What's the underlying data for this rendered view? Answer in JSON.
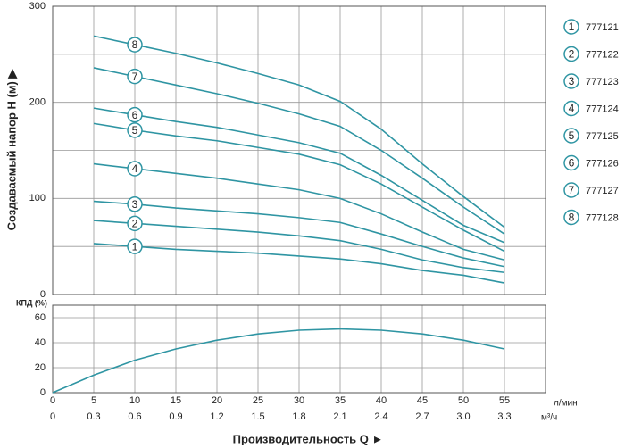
{
  "chart_data": [
    {
      "type": "line",
      "ylabel": "Создаваемый напор H (м) ▶",
      "x": [
        5,
        10,
        15,
        20,
        25,
        30,
        35,
        40,
        45,
        50,
        55
      ],
      "xlim": [
        0,
        60
      ],
      "ylim": [
        0,
        300
      ],
      "yticks": [
        0,
        100,
        200,
        300
      ],
      "yminor": [
        50,
        150,
        250
      ],
      "color": "#2f95a3",
      "series": [
        {
          "name": "777121",
          "marker": "1",
          "values": [
            53,
            50,
            47,
            45,
            43,
            40,
            37,
            32,
            25,
            20,
            12
          ]
        },
        {
          "name": "777122",
          "marker": "2",
          "values": [
            77,
            74,
            71,
            68,
            65,
            61,
            56,
            47,
            36,
            28,
            23
          ]
        },
        {
          "name": "777123",
          "marker": "3",
          "values": [
            97,
            94,
            90,
            87,
            84,
            80,
            75,
            63,
            50,
            38,
            29
          ]
        },
        {
          "name": "777124",
          "marker": "4",
          "values": [
            136,
            131,
            126,
            121,
            115,
            109,
            100,
            84,
            65,
            47,
            36
          ]
        },
        {
          "name": "777125",
          "marker": "5",
          "values": [
            178,
            171,
            165,
            160,
            153,
            146,
            135,
            115,
            91,
            67,
            45
          ]
        },
        {
          "name": "777126",
          "marker": "6",
          "values": [
            194,
            187,
            180,
            174,
            166,
            158,
            147,
            124,
            98,
            72,
            54
          ]
        },
        {
          "name": "777127",
          "marker": "7",
          "values": [
            236,
            227,
            218,
            209,
            199,
            188,
            175,
            150,
            121,
            91,
            63
          ]
        },
        {
          "name": "777128",
          "marker": "8",
          "values": [
            269,
            260,
            251,
            241,
            230,
            218,
            201,
            172,
            136,
            102,
            70
          ]
        }
      ]
    },
    {
      "type": "line",
      "title": "КПД (%)",
      "x": [
        0,
        5,
        10,
        15,
        20,
        25,
        30,
        35,
        40,
        45,
        50,
        55
      ],
      "values": [
        0,
        14,
        26,
        35,
        42,
        47,
        50,
        51,
        50,
        47,
        42,
        35
      ],
      "xlim": [
        0,
        60
      ],
      "ylim": [
        0,
        70
      ],
      "yticks": [
        0,
        20,
        40,
        60
      ],
      "color": "#2f95a3",
      "xticks": [
        0,
        5,
        10,
        15,
        20,
        25,
        30,
        35,
        40,
        45,
        50,
        55
      ],
      "xunit": "л/мин",
      "x2ticks": [
        0,
        0.3,
        0.6,
        0.9,
        1.2,
        1.5,
        1.8,
        2.1,
        2.4,
        2.7,
        {
          "value": 3,
          "label": "3.0"
        },
        3.3
      ],
      "x2unit": "м³/ч",
      "xlabel": "Производительность Q ►"
    }
  ]
}
